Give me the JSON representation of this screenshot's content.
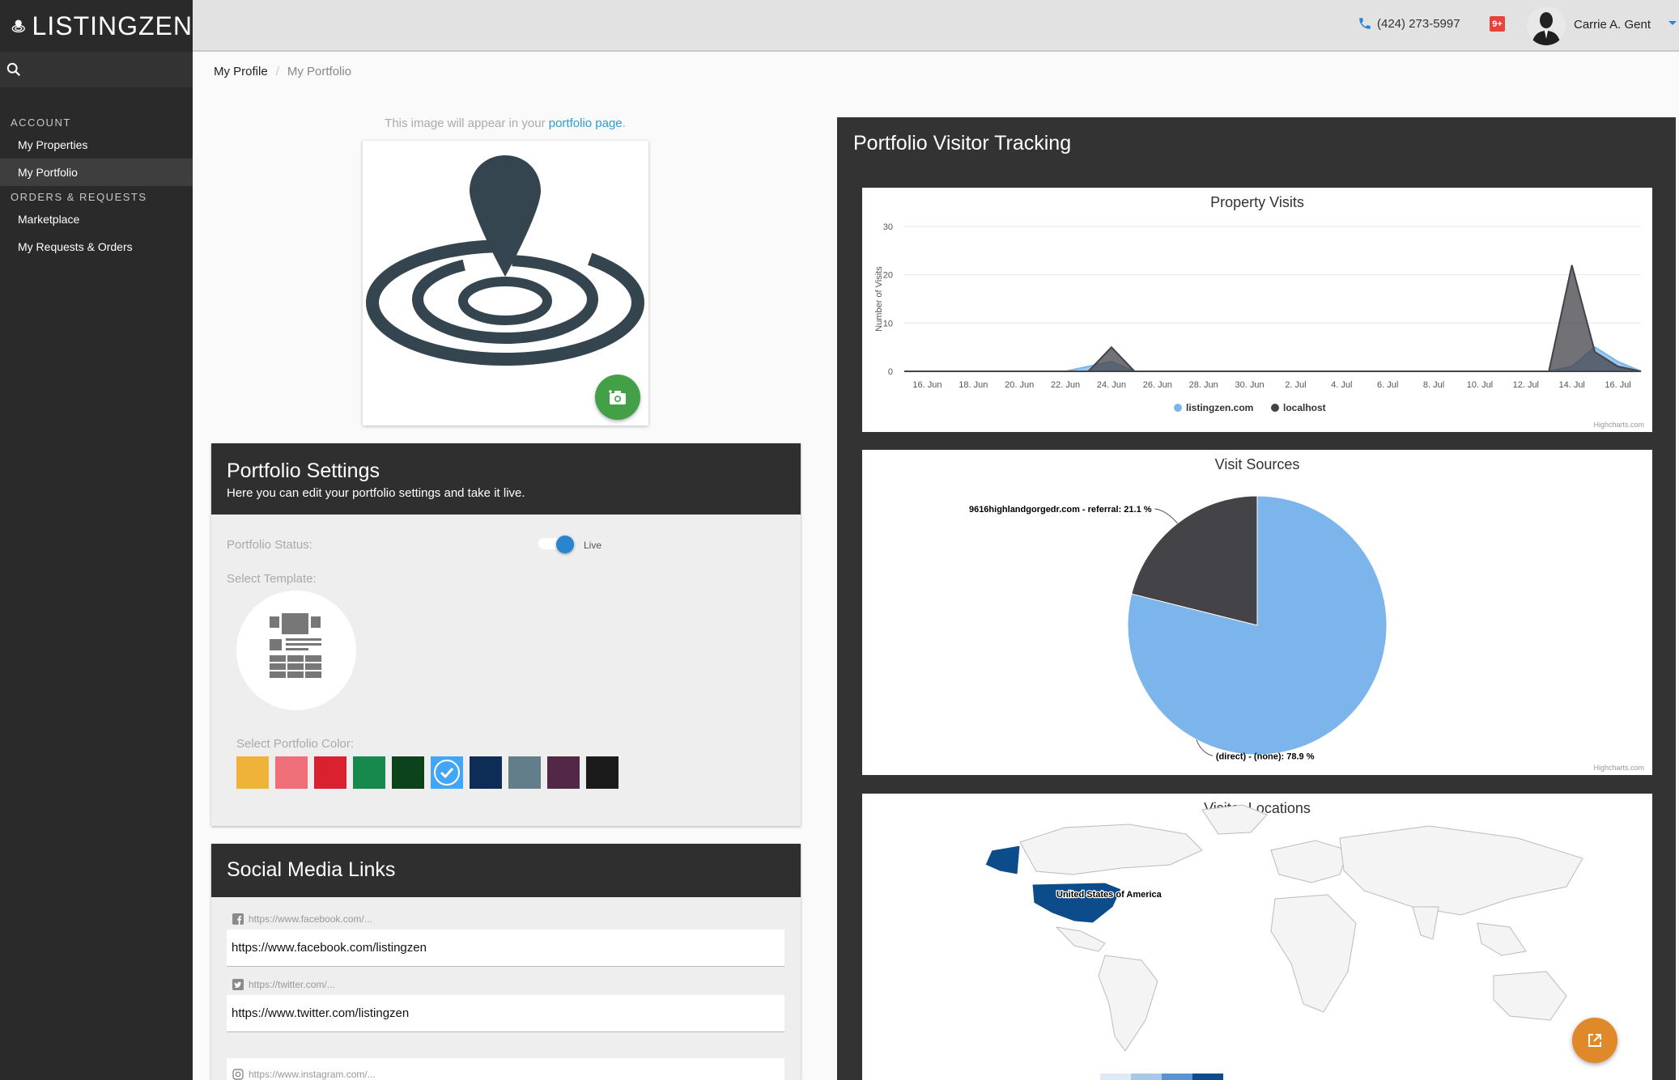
{
  "app": {
    "logo_text": "LISTINGZEN"
  },
  "sidebar": {
    "sections": [
      {
        "heading": "ACCOUNT",
        "items": [
          {
            "label": "My Properties"
          },
          {
            "label": "My Portfolio",
            "active": true
          }
        ]
      },
      {
        "heading": "ORDERS & REQUESTS",
        "items": [
          {
            "label": "Marketplace"
          },
          {
            "label": "My Requests & Orders"
          }
        ]
      }
    ]
  },
  "topbar": {
    "phone": "(424) 273-5997",
    "badge": "9+",
    "user_name": "Carrie A. Gent"
  },
  "breadcrumb": {
    "root": "My Profile",
    "separator": "/",
    "current": "My Portfolio"
  },
  "profile_image": {
    "note_prefix": "This image will appear in your",
    "note_link": "portfolio page",
    "note_suffix": "."
  },
  "portfolio_settings": {
    "title": "Portfolio Settings",
    "subtitle": "Here you can edit your portfolio settings and take it live.",
    "status_label": "Portfolio Status:",
    "status_value": "Live",
    "status_on": true,
    "template_label": "Select Template:",
    "color_label": "Select Portfolio Color:",
    "colors": [
      "#efb339",
      "#ef6f78",
      "#da2130",
      "#17894d",
      "#0c431c",
      "#42a5f5",
      "#0d2c56",
      "#627e8b",
      "#532746",
      "#1b1b1b"
    ],
    "selected_color_index": 5
  },
  "social_media": {
    "title": "Social Media Links",
    "links": [
      {
        "icon": "facebook-icon",
        "placeholder": "https://www.facebook.com/...",
        "value": "https://www.facebook.com/listingzen"
      },
      {
        "icon": "twitter-icon",
        "placeholder": "https://twitter.com/...",
        "value": "https://www.twitter.com/listingzen"
      },
      {
        "icon": "instagram-icon",
        "placeholder": "https://www.instagram.com/...",
        "value": ""
      }
    ]
  },
  "tracking": {
    "title": "Portfolio Visitor Tracking",
    "credit": "Highcharts.com"
  },
  "chart_data": [
    {
      "type": "area",
      "title": "Property Visits",
      "ylabel": "Number of Visits",
      "ylim": [
        0,
        30
      ],
      "yticks": [
        0,
        10,
        20,
        30
      ],
      "xticks": [
        "16. Jun",
        "18. Jun",
        "20. Jun",
        "22. Jun",
        "24. Jun",
        "26. Jun",
        "28. Jun",
        "30. Jun",
        "2. Jul",
        "4. Jul",
        "6. Jul",
        "8. Jul",
        "10. Jul",
        "12. Jul",
        "14. Jul",
        "16. Jul"
      ],
      "x_dates": [
        "15. Jun",
        "16. Jun",
        "17. Jun",
        "18. Jun",
        "19. Jun",
        "20. Jun",
        "21. Jun",
        "22. Jun",
        "23. Jun",
        "24. Jun",
        "25. Jun",
        "26. Jun",
        "27. Jun",
        "28. Jun",
        "29. Jun",
        "30. Jun",
        "1. Jul",
        "2. Jul",
        "3. Jul",
        "4. Jul",
        "5. Jul",
        "6. Jul",
        "7. Jul",
        "8. Jul",
        "9. Jul",
        "10. Jul",
        "11. Jul",
        "12. Jul",
        "13. Jul",
        "14. Jul",
        "15. Jul",
        "16. Jul",
        "17. Jul"
      ],
      "series": [
        {
          "name": "listingzen.com",
          "color": "#7cb5ec",
          "values": [
            0,
            0,
            0,
            0,
            0,
            0,
            0,
            0,
            1,
            2,
            0,
            0,
            0,
            0,
            0,
            0,
            0,
            0,
            0,
            0,
            0,
            0,
            0,
            0,
            0,
            0,
            0,
            0,
            0,
            1,
            5,
            2,
            0
          ]
        },
        {
          "name": "localhost",
          "color": "#434348",
          "values": [
            0,
            0,
            0,
            0,
            0,
            0,
            0,
            0,
            0,
            5,
            0,
            0,
            0,
            0,
            0,
            0,
            0,
            0,
            0,
            0,
            0,
            0,
            0,
            0,
            0,
            0,
            0,
            0,
            0,
            22,
            4,
            1,
            0
          ]
        }
      ],
      "legend": "bottom-center"
    },
    {
      "type": "pie",
      "title": "Visit Sources",
      "slices": [
        {
          "label": "9616highlandgorgedr.com - referral: 21.1 %",
          "value": 21.1,
          "color": "#434348"
        },
        {
          "label": "(direct) - (none): 78.9 %",
          "value": 78.9,
          "color": "#7cb5ec"
        }
      ]
    },
    {
      "type": "map",
      "title": "Visitor Locations",
      "highlighted": [
        {
          "label": "United States of America",
          "color": "#0d4c8b"
        }
      ]
    }
  ]
}
